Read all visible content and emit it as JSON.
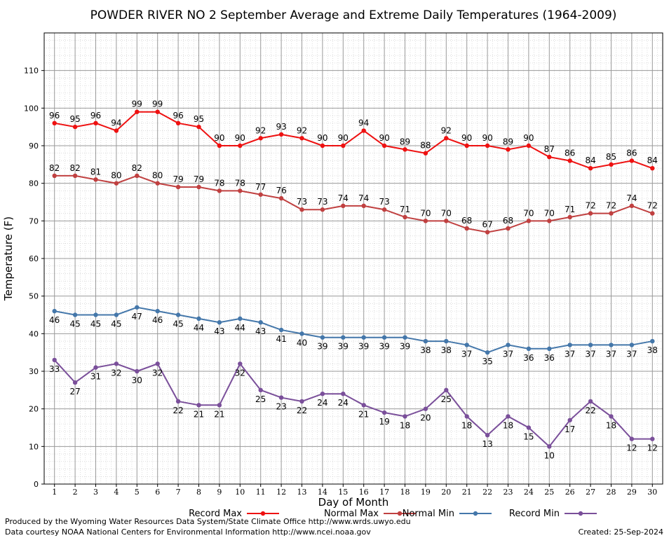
{
  "chart_data": {
    "type": "line",
    "title": "POWDER RIVER NO 2 September Average and Extreme Daily Temperatures (1964-2009)",
    "xlabel": "Day of Month",
    "ylabel": "Temperature (F)",
    "ylim": [
      0,
      120
    ],
    "xlim": [
      0.5,
      30.5
    ],
    "grid": true,
    "legend_position": "bottom",
    "x": [
      1,
      2,
      3,
      4,
      5,
      6,
      7,
      8,
      9,
      10,
      11,
      12,
      13,
      14,
      15,
      16,
      17,
      18,
      19,
      20,
      21,
      22,
      23,
      24,
      25,
      26,
      27,
      28,
      29,
      30
    ],
    "y_ticks": [
      0,
      10,
      20,
      30,
      40,
      50,
      60,
      70,
      80,
      90,
      100,
      110
    ],
    "series": [
      {
        "name": "Record Max",
        "color": "#ee1111",
        "label_pos": "above",
        "values": [
          96,
          95,
          96,
          94,
          99,
          99,
          96,
          95,
          90,
          90,
          92,
          93,
          92,
          90,
          90,
          94,
          90,
          89,
          88,
          92,
          90,
          90,
          89,
          90,
          87,
          86,
          84,
          85,
          86,
          84
        ]
      },
      {
        "name": "Normal Max",
        "color": "#c04040",
        "label_pos": "above",
        "values": [
          82,
          82,
          81,
          80,
          82,
          80,
          79,
          79,
          78,
          78,
          77,
          76,
          73,
          73,
          74,
          74,
          73,
          71,
          70,
          70,
          68,
          67,
          68,
          70,
          70,
          71,
          72,
          72,
          74,
          72
        ]
      },
      {
        "name": "Normal Min",
        "color": "#4477aa",
        "label_pos": "below",
        "values": [
          46,
          45,
          45,
          45,
          47,
          46,
          45,
          44,
          43,
          44,
          43,
          41,
          40,
          39,
          39,
          39,
          39,
          39,
          38,
          38,
          37,
          35,
          37,
          36,
          36,
          37,
          37,
          37,
          37,
          38
        ]
      },
      {
        "name": "Record Min",
        "color": "#7a4f9a",
        "label_pos": "below",
        "values": [
          33,
          27,
          31,
          32,
          30,
          32,
          22,
          21,
          21,
          32,
          25,
          23,
          22,
          24,
          24,
          21,
          19,
          18,
          20,
          25,
          18,
          13,
          18,
          15,
          10,
          17,
          22,
          18,
          12,
          12
        ]
      }
    ]
  },
  "footer": {
    "produced_by": "Produced by the Wyoming Water Resources Data System/State Climate Office http://www.wrds.uwyo.edu",
    "courtesy": "Data courtesy NOAA National Centers for Environmental Information http://www.ncei.noaa.gov",
    "created": "Created:  25-Sep-2024"
  }
}
